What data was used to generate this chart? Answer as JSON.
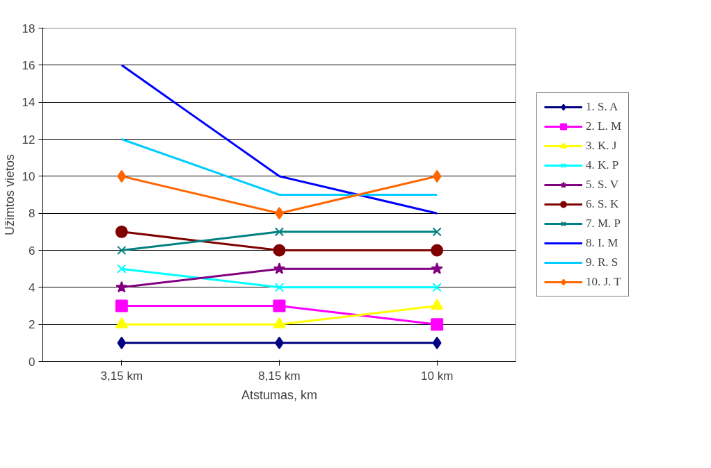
{
  "chart_data": {
    "type": "line",
    "xlabel": "Atstumas, km",
    "ylabel": "Užimtos vietos",
    "categories": [
      "3,15 km",
      "8,15 km",
      "10 km"
    ],
    "ylim": [
      0,
      18
    ],
    "yticks": [
      0,
      2,
      4,
      6,
      8,
      10,
      12,
      14,
      16,
      18
    ],
    "grid": "y",
    "legend": "right",
    "series": [
      {
        "name": "1. S. A",
        "color": "#000080",
        "marker": "diamond",
        "values": [
          1,
          1,
          1
        ]
      },
      {
        "name": "2. L. M",
        "color": "#ff00ff",
        "marker": "square",
        "values": [
          3,
          3,
          2
        ]
      },
      {
        "name": "3. K. J",
        "color": "#ffff00",
        "marker": "triangle",
        "values": [
          2,
          2,
          3
        ]
      },
      {
        "name": "4. K. P",
        "color": "#00ffff",
        "marker": "cross",
        "values": [
          5,
          4,
          4
        ]
      },
      {
        "name": "5. S. V",
        "color": "#800080",
        "marker": "star",
        "values": [
          4,
          5,
          5
        ]
      },
      {
        "name": "6. S. K",
        "color": "#800000",
        "marker": "circle",
        "values": [
          7,
          6,
          6
        ]
      },
      {
        "name": "7. M. P",
        "color": "#008080",
        "marker": "cross",
        "values": [
          6,
          7,
          7
        ]
      },
      {
        "name": "8. I. M",
        "color": "#0000ff",
        "marker": "none",
        "values": [
          16,
          10,
          8
        ]
      },
      {
        "name": "9. R. S",
        "color": "#00ccff",
        "marker": "none",
        "values": [
          12,
          9,
          9
        ]
      },
      {
        "name": "10. J. T",
        "color": "#ff6600",
        "marker": "diamond",
        "values": [
          10,
          8,
          10
        ]
      }
    ]
  }
}
